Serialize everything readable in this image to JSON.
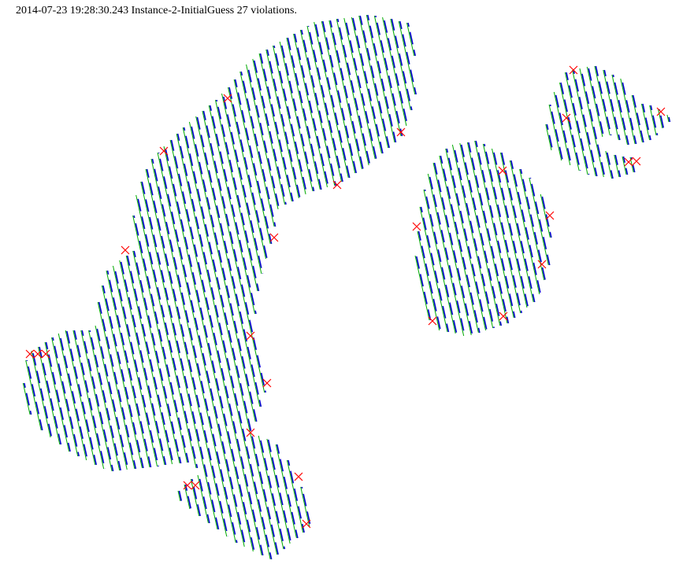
{
  "status": {
    "text": "2014-07-23 19:28:30.243 Instance-2-InitialGuess 27 violations."
  },
  "legend_colors": {
    "path_primary": "#0000cc",
    "path_secondary": "#00aa00",
    "violation_marker": "#ff0000"
  },
  "violations": {
    "count": 27
  }
}
